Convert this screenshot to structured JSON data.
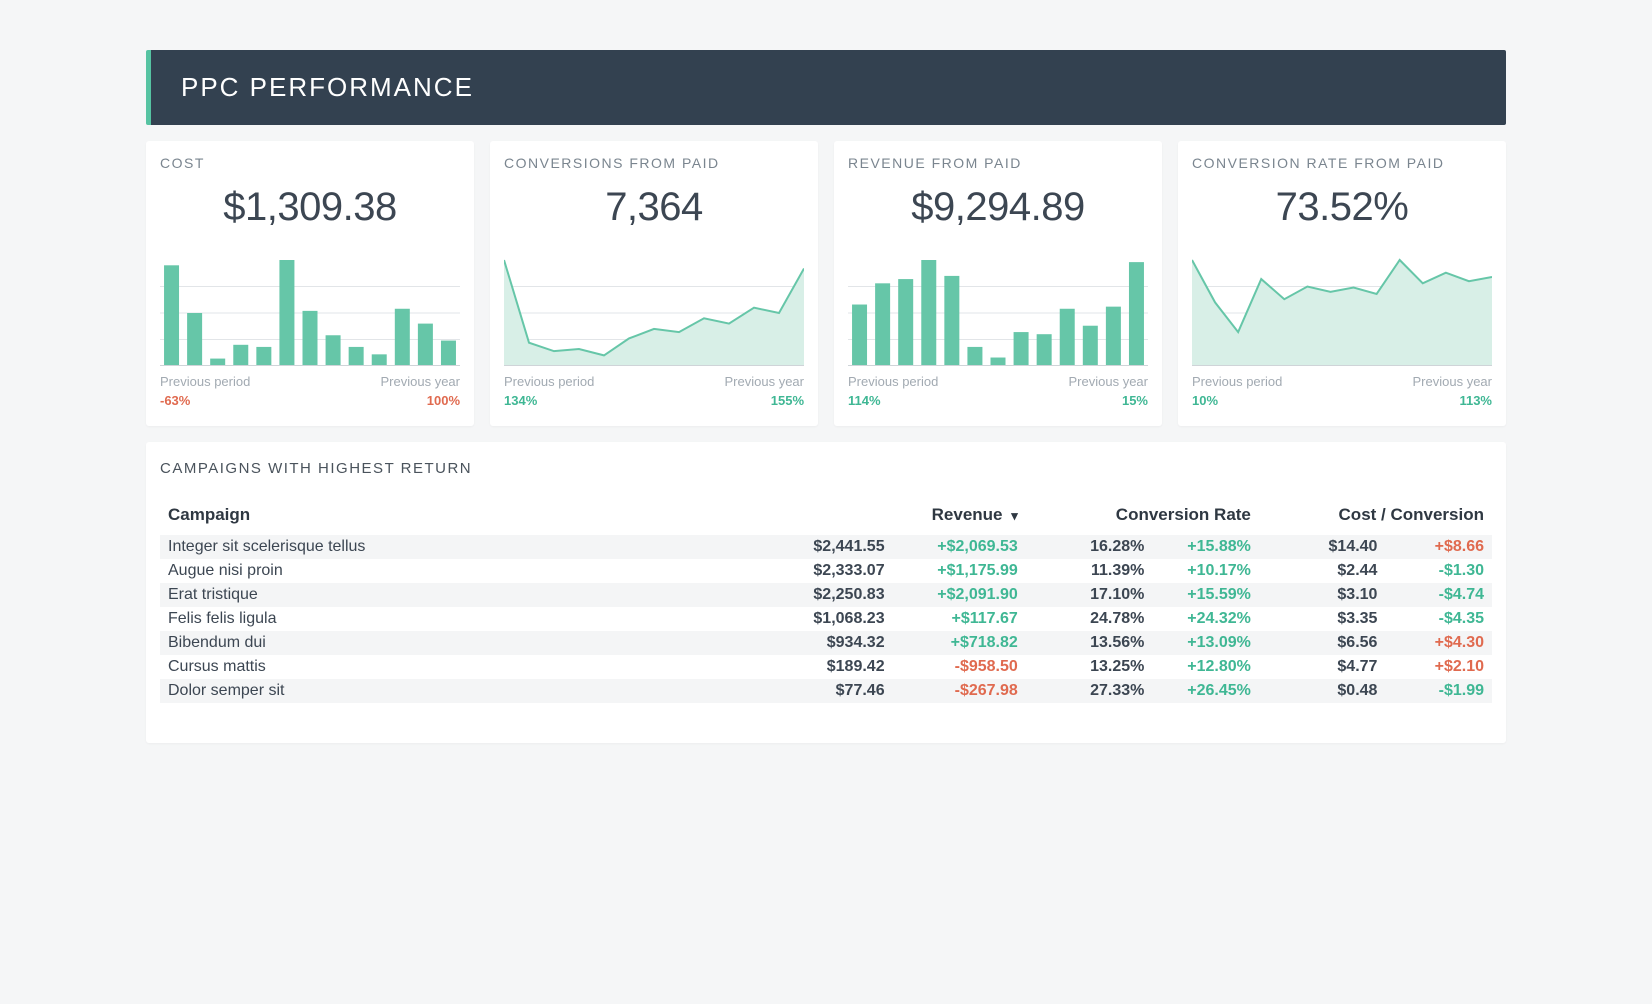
{
  "colors": {
    "chart_primary": "#66c6a8",
    "chart_fill": "#d8efe7",
    "grid_line": "#e2e5e8",
    "baseline": "#cfd4d8",
    "positive": "#3fb794",
    "negative": "#e06a4f",
    "header_bg": "#334150",
    "accent": "#56c3a2"
  },
  "header": {
    "title": "PPC PERFORMANCE"
  },
  "labels": {
    "previous_period": "Previous period",
    "previous_year": "Previous year"
  },
  "cards": [
    {
      "id": "cost",
      "title": "COST",
      "value": "$1,309.38",
      "chart": {
        "type": "bar",
        "values": [
          95,
          50,
          7,
          20,
          18,
          100,
          52,
          29,
          18,
          11,
          54,
          40,
          24
        ]
      },
      "prev_period": {
        "text": "-63%",
        "sign": "neg"
      },
      "prev_year": {
        "text": "100%",
        "sign": "neg"
      }
    },
    {
      "id": "conversions",
      "title": "CONVERSIONS FROM PAID",
      "value": "7,364",
      "chart": {
        "type": "area",
        "values": [
          100,
          22,
          14,
          16,
          10,
          26,
          35,
          32,
          45,
          40,
          55,
          50,
          92
        ]
      },
      "prev_period": {
        "text": "134%",
        "sign": "pos"
      },
      "prev_year": {
        "text": "155%",
        "sign": "pos"
      }
    },
    {
      "id": "revenue",
      "title": "REVENUE FROM PAID",
      "value": "$9,294.89",
      "chart": {
        "type": "bar",
        "values": [
          58,
          78,
          82,
          100,
          85,
          18,
          8,
          32,
          30,
          54,
          38,
          56,
          98
        ]
      },
      "prev_period": {
        "text": "114%",
        "sign": "pos"
      },
      "prev_year": {
        "text": "15%",
        "sign": "pos"
      }
    },
    {
      "id": "conv_rate",
      "title": "CONVERSION RATE FROM PAID",
      "value": "73.52%",
      "chart": {
        "type": "area",
        "values": [
          100,
          60,
          32,
          82,
          63,
          75,
          70,
          74,
          68,
          100,
          78,
          88,
          80,
          84
        ]
      },
      "prev_period": {
        "text": "10%",
        "sign": "pos"
      },
      "prev_year": {
        "text": "113%",
        "sign": "pos"
      }
    }
  ],
  "table": {
    "title": "CAMPAIGNS WITH HIGHEST RETURN",
    "sort_column": "revenue",
    "columns": {
      "campaign": "Campaign",
      "revenue": "Revenue",
      "conversion_rate": "Conversion Rate",
      "cost_per_conversion": "Cost / Conversion"
    },
    "rows": [
      {
        "campaign": "Integer sit scelerisque tellus",
        "revenue": "$2,441.55",
        "revenue_delta": "+$2,069.53",
        "revenue_sign": "pos",
        "rate": "16.28%",
        "rate_delta": "+15.88%",
        "rate_sign": "pos",
        "cpc": "$14.40",
        "cpc_delta": "+$8.66",
        "cpc_sign": "neg"
      },
      {
        "campaign": "Augue nisi proin",
        "revenue": "$2,333.07",
        "revenue_delta": "+$1,175.99",
        "revenue_sign": "pos",
        "rate": "11.39%",
        "rate_delta": "+10.17%",
        "rate_sign": "pos",
        "cpc": "$2.44",
        "cpc_delta": "-$1.30",
        "cpc_sign": "pos"
      },
      {
        "campaign": "Erat tristique",
        "revenue": "$2,250.83",
        "revenue_delta": "+$2,091.90",
        "revenue_sign": "pos",
        "rate": "17.10%",
        "rate_delta": "+15.59%",
        "rate_sign": "pos",
        "cpc": "$3.10",
        "cpc_delta": "-$4.74",
        "cpc_sign": "pos"
      },
      {
        "campaign": "Felis felis ligula",
        "revenue": "$1,068.23",
        "revenue_delta": "+$117.67",
        "revenue_sign": "pos",
        "rate": "24.78%",
        "rate_delta": "+24.32%",
        "rate_sign": "pos",
        "cpc": "$3.35",
        "cpc_delta": "-$4.35",
        "cpc_sign": "pos"
      },
      {
        "campaign": "Bibendum dui",
        "revenue": "$934.32",
        "revenue_delta": "+$718.82",
        "revenue_sign": "pos",
        "rate": "13.56%",
        "rate_delta": "+13.09%",
        "rate_sign": "pos",
        "cpc": "$6.56",
        "cpc_delta": "+$4.30",
        "cpc_sign": "neg"
      },
      {
        "campaign": "Cursus mattis",
        "revenue": "$189.42",
        "revenue_delta": "-$958.50",
        "revenue_sign": "neg",
        "rate": "13.25%",
        "rate_delta": "+12.80%",
        "rate_sign": "pos",
        "cpc": "$4.77",
        "cpc_delta": "+$2.10",
        "cpc_sign": "neg"
      },
      {
        "campaign": "Dolor semper sit",
        "revenue": "$77.46",
        "revenue_delta": "-$267.98",
        "revenue_sign": "neg",
        "rate": "27.33%",
        "rate_delta": "+26.45%",
        "rate_sign": "pos",
        "cpc": "$0.48",
        "cpc_delta": "-$1.99",
        "cpc_sign": "pos"
      }
    ]
  }
}
